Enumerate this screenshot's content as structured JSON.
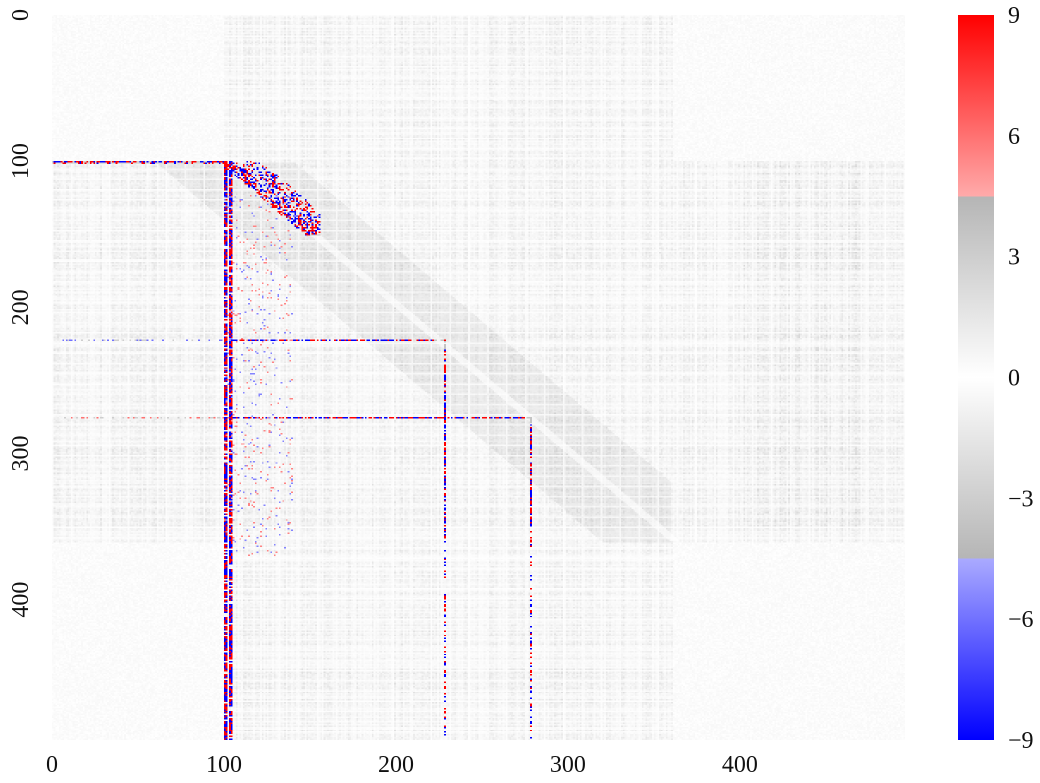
{
  "chart_data": {
    "type": "heatmap",
    "title": "",
    "xlabel": "",
    "ylabel": "",
    "matrix_size": 496,
    "xlim": [
      0,
      496
    ],
    "ylim": [
      496,
      0
    ],
    "x_ticks": [
      0,
      100,
      200,
      300,
      400
    ],
    "x_tick_labels": [
      "0",
      "100",
      "200",
      "300",
      "400"
    ],
    "y_ticks": [
      0,
      100,
      200,
      300,
      400
    ],
    "y_tick_labels": [
      "0",
      "100",
      "200",
      "300",
      "400"
    ],
    "colorbar": {
      "vmin": -9,
      "vmax": 9,
      "ticks": [
        9,
        6,
        3,
        0,
        -3,
        -6,
        -9
      ],
      "tick_labels": [
        "9",
        "6",
        "3",
        "0",
        "−3",
        "−6",
        "−9"
      ],
      "stops": [
        {
          "value": -9,
          "color": "#0000ff"
        },
        {
          "value": -4.5,
          "color": "#aaaaff"
        },
        {
          "value": -4.5,
          "color": "#b5b5b5"
        },
        {
          "value": 0,
          "color": "#ffffff"
        },
        {
          "value": 4.5,
          "color": "#b5b5b5"
        },
        {
          "value": 4.5,
          "color": "#ffaaaa"
        },
        {
          "value": 9,
          "color": "#ff0000"
        }
      ]
    },
    "features": {
      "dense_band": [
        100,
        360
      ],
      "strong_rows": [
        100,
        222,
        275
      ],
      "strong_cols": [
        100,
        103,
        228,
        278
      ],
      "diagonal_cluster": [
        100,
        150
      ]
    },
    "grid": false
  }
}
